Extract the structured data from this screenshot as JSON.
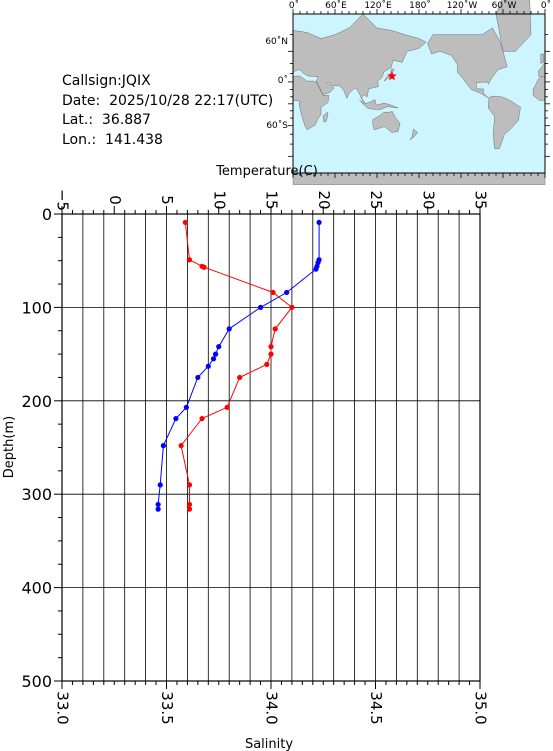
{
  "info": {
    "callsign": "Callsign:JQIX",
    "date": "Date:  2025/10/28 22:17(UTC)",
    "lat": "Lat.:  36.887",
    "lon": "Lon.:  141.438"
  },
  "map": {
    "top_labels": [
      "0˚",
      "60˚E",
      "120˚E",
      "180˚",
      "120˚W",
      "60˚W",
      "0˚"
    ],
    "left_labels": [
      "60˚N",
      "0˚",
      "60˚S"
    ],
    "ocean_color": "#ccf5ff",
    "land_color": "#bdbdbd",
    "marker_color": "#ff0000",
    "marker": {
      "lon": 141.438,
      "lat": 36.887
    }
  },
  "chart_data": {
    "type": "line",
    "top_axis_label": "Temperature(C)",
    "left_axis_label": "Depth(m)",
    "bottom_axis_label": "Salinity",
    "temperature_ticks": [
      "−5",
      "0",
      "5",
      "10",
      "15",
      "20",
      "25",
      "30",
      "35"
    ],
    "depth_ticks": [
      "0",
      "100",
      "200",
      "300",
      "400",
      "500"
    ],
    "salinity_ticks": [
      "33.0",
      "33.5",
      "34.0",
      "34.5",
      "35.0"
    ],
    "temperature_range": [
      -5,
      35
    ],
    "salinity_range": [
      33.0,
      35.0
    ],
    "depth_range": [
      0,
      500
    ],
    "depth_reversed": true,
    "grid": true,
    "series": [
      {
        "color": "#0000ff",
        "quantity": "temperature",
        "points": [
          {
            "v": 19.6,
            "d": 9
          },
          {
            "v": 19.6,
            "d": 49
          },
          {
            "v": 19.5,
            "d": 52
          },
          {
            "v": 19.4,
            "d": 56
          },
          {
            "v": 19.3,
            "d": 59
          },
          {
            "v": 16.5,
            "d": 84
          },
          {
            "v": 14.0,
            "d": 100
          },
          {
            "v": 11.0,
            "d": 123
          },
          {
            "v": 10.0,
            "d": 142
          },
          {
            "v": 9.7,
            "d": 150
          },
          {
            "v": 9.5,
            "d": 155
          },
          {
            "v": 9.0,
            "d": 163
          },
          {
            "v": 8.0,
            "d": 175
          },
          {
            "v": 6.9,
            "d": 207
          },
          {
            "v": 5.9,
            "d": 219
          },
          {
            "v": 4.7,
            "d": 248
          },
          {
            "v": 4.4,
            "d": 290
          },
          {
            "v": 4.2,
            "d": 311
          },
          {
            "v": 4.2,
            "d": 316
          }
        ]
      },
      {
        "color": "#ff0000",
        "quantity": "salinity",
        "points": [
          {
            "v": 33.59,
            "d": 9
          },
          {
            "v": 33.61,
            "d": 49
          },
          {
            "v": 33.67,
            "d": 56
          },
          {
            "v": 33.68,
            "d": 57
          },
          {
            "v": 34.01,
            "d": 84
          },
          {
            "v": 34.1,
            "d": 100
          },
          {
            "v": 34.02,
            "d": 123
          },
          {
            "v": 34.0,
            "d": 142
          },
          {
            "v": 34.0,
            "d": 150
          },
          {
            "v": 33.98,
            "d": 161
          },
          {
            "v": 33.85,
            "d": 175
          },
          {
            "v": 33.79,
            "d": 207
          },
          {
            "v": 33.67,
            "d": 219
          },
          {
            "v": 33.57,
            "d": 248
          },
          {
            "v": 33.61,
            "d": 290
          },
          {
            "v": 33.61,
            "d": 311
          },
          {
            "v": 33.61,
            "d": 316
          }
        ]
      }
    ]
  }
}
